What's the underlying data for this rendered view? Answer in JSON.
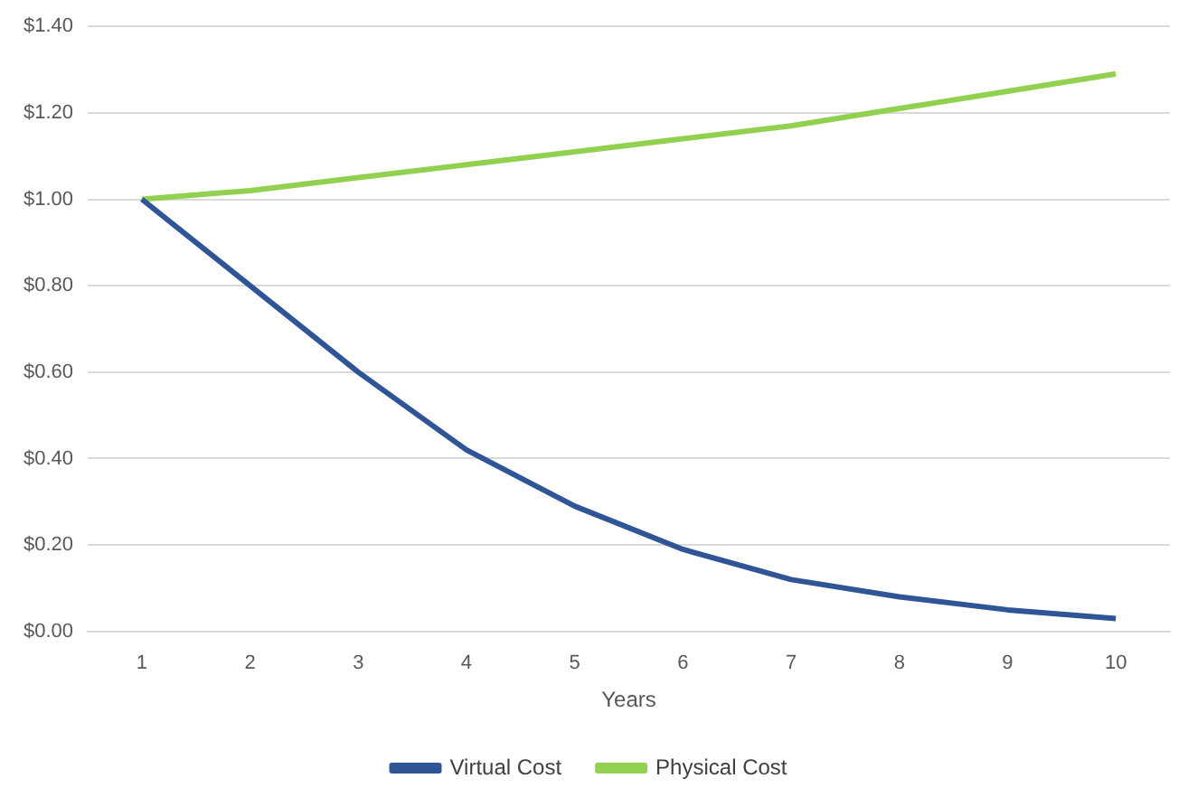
{
  "chart_data": {
    "type": "line",
    "xlabel": "Years",
    "categories": [
      "1",
      "2",
      "3",
      "4",
      "5",
      "6",
      "7",
      "8",
      "9",
      "10"
    ],
    "series": [
      {
        "name": "Virtual Cost",
        "color": "#2f5597",
        "values": [
          1.0,
          0.8,
          0.6,
          0.42,
          0.29,
          0.19,
          0.12,
          0.08,
          0.05,
          0.03
        ]
      },
      {
        "name": "Physical Cost",
        "color": "#92d050",
        "values": [
          1.0,
          1.02,
          1.05,
          1.08,
          1.11,
          1.14,
          1.17,
          1.21,
          1.25,
          1.29
        ]
      }
    ],
    "ylim": [
      0,
      1.4
    ],
    "yticks": [
      {
        "value": 0,
        "label": "$0.00"
      },
      {
        "value": 0.2,
        "label": "$0.20"
      },
      {
        "value": 0.4,
        "label": "$0.40"
      },
      {
        "value": 0.6,
        "label": "$0.60"
      },
      {
        "value": 0.8,
        "label": "$0.80"
      },
      {
        "value": 1.0,
        "label": "$1.00"
      },
      {
        "value": 1.2,
        "label": "$1.20"
      },
      {
        "value": 1.4,
        "label": "$1.40"
      }
    ],
    "grid": "y",
    "legend": "bottom",
    "marker": "none",
    "line_style": "solid"
  }
}
